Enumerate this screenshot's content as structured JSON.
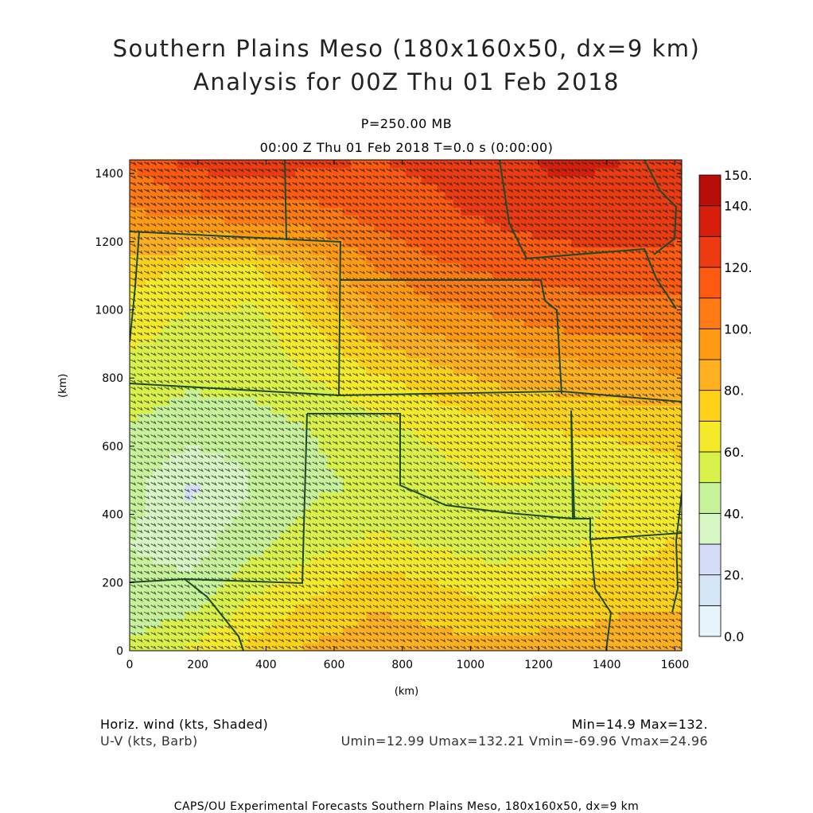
{
  "title": {
    "line1": "Southern Plains Meso (180x160x50, dx=9 km)",
    "line2": "Analysis for 00Z Thu 01 Feb 2018"
  },
  "subtitle": {
    "level": "P=250.00 MB",
    "time": "00:00 Z Thu 01 Feb 2018    T=0.0 s (0:00:00)"
  },
  "footer": {
    "field_shaded": "Horiz. wind (kts, Shaded)",
    "field_barb": "U-V (kts, Barb)",
    "minmax": "Min=14.9 Max=132.",
    "uv_range": "Umin=12.99 Umax=132.21 Vmin=-69.96 Vmax=24.96",
    "credit": "CAPS/OU Experimental Forecasts  Southern Plains Meso, 180x160x50, dx=9 km"
  },
  "chart_data": {
    "type": "heatmap",
    "xlabel": "(km)",
    "ylabel": "(km)",
    "xlim": [
      0,
      1620
    ],
    "ylim": [
      0,
      1440
    ],
    "x_ticks": [
      0,
      200,
      400,
      600,
      800,
      1000,
      1200,
      1400,
      1600
    ],
    "y_ticks": [
      0,
      200,
      400,
      600,
      800,
      1000,
      1200,
      1400
    ],
    "colorbar": {
      "levels": [
        0,
        10,
        20,
        30,
        40,
        50,
        60,
        70,
        80,
        90,
        100,
        110,
        120,
        130,
        140,
        150
      ],
      "labels": [
        "0.0",
        "20.",
        "40.",
        "60.",
        "80.",
        "100.",
        "120.",
        "140.",
        "150."
      ],
      "colors": [
        "#e8f4fb",
        "#d5e7f6",
        "#d4dcf7",
        "#d7f7c5",
        "#c6f39a",
        "#d9f24a",
        "#f5ea2a",
        "#ffd21a",
        "#ffb020",
        "#ff9a12",
        "#ff7a12",
        "#ff5a10",
        "#ee3a10",
        "#d61e0a",
        "#b80e08"
      ]
    },
    "wind_field": {
      "grid_kts": [
        [
          52,
          62,
          74,
          82,
          86,
          85,
          84,
          86,
          84,
          80
        ],
        [
          42,
          44,
          60,
          70,
          78,
          74,
          66,
          72,
          78,
          80
        ],
        [
          40,
          36,
          46,
          56,
          62,
          58,
          56,
          58,
          62,
          72
        ],
        [
          44,
          28,
          40,
          48,
          52,
          56,
          60,
          58,
          60,
          66
        ],
        [
          48,
          44,
          44,
          50,
          56,
          62,
          66,
          70,
          72,
          74
        ],
        [
          56,
          52,
          54,
          60,
          68,
          76,
          82,
          84,
          86,
          88
        ],
        [
          64,
          58,
          56,
          70,
          86,
          94,
          98,
          102,
          104,
          106
        ],
        [
          74,
          68,
          68,
          82,
          100,
          108,
          112,
          114,
          116,
          114
        ],
        [
          98,
          102,
          104,
          106,
          114,
          118,
          122,
          126,
          128,
          126
        ],
        [
          112,
          124,
          128,
          122,
          120,
          122,
          126,
          132,
          130,
          124
        ]
      ],
      "grid_rows_from": "south (y=0) to north (y=1440)",
      "grid_cols_from": "west (x=0) to east (x=1620)",
      "min": 14.9,
      "max": 132
    },
    "barbs": {
      "direction": "from west-northwest",
      "umin": 12.99,
      "umax": 132.21,
      "vmin": -69.96,
      "vmax": 24.96
    }
  }
}
